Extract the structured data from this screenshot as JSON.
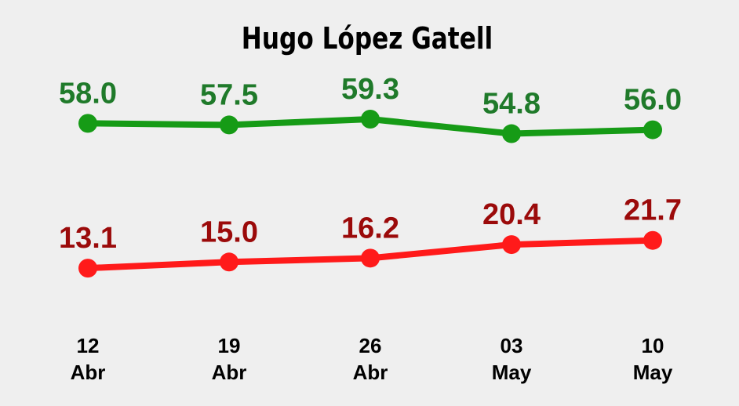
{
  "chart_data": {
    "type": "line",
    "title": "Hugo López Gatell",
    "categories": [
      "12 Abr",
      "19 Abr",
      "26 Abr",
      "03 May",
      "10 May"
    ],
    "ylim": [
      0,
      70
    ],
    "series": [
      {
        "color": "#169b16",
        "label_color": "#1f7a2a",
        "values": [
          58.0,
          57.5,
          59.3,
          54.8,
          56.0
        ],
        "value_labels": [
          "58.0",
          "57.5",
          "59.3",
          "54.8",
          "56.0"
        ]
      },
      {
        "color": "#ff1a1a",
        "label_color": "#9b0a0a",
        "values": [
          13.1,
          15.0,
          16.2,
          20.4,
          21.7
        ],
        "value_labels": [
          "13.1",
          "15.0",
          "16.2",
          "20.4",
          "21.7"
        ]
      }
    ]
  }
}
